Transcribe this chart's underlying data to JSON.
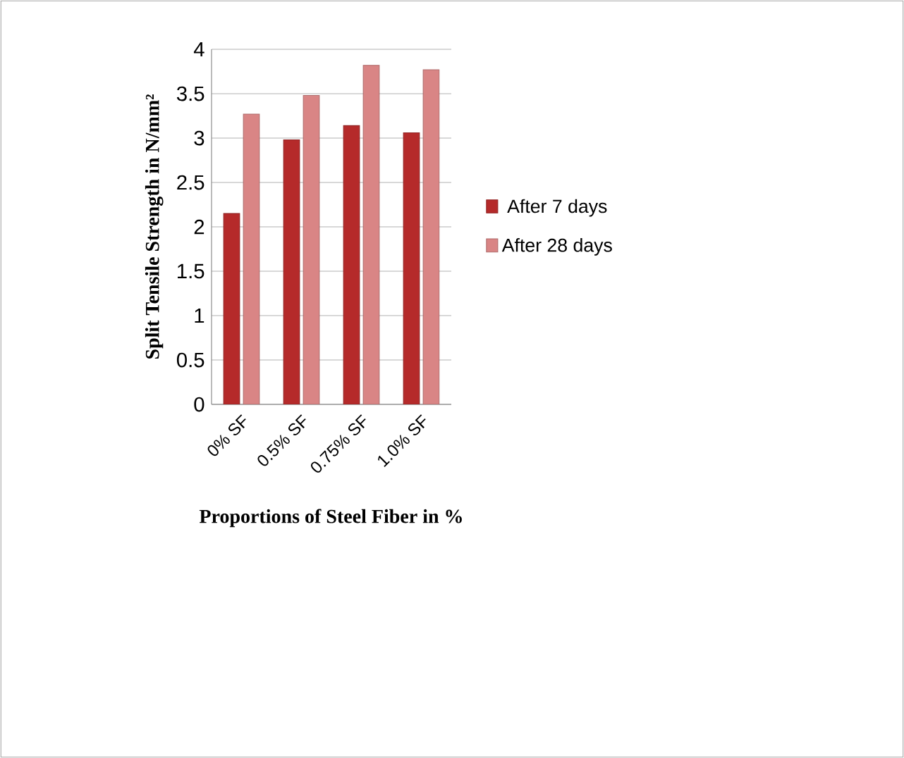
{
  "chart_data": {
    "type": "bar",
    "xlabel": "Proportions of Steel Fiber in %",
    "ylabel": "Split Tensile Strength  in N/mm²",
    "categories": [
      "0% SF",
      "0.5% SF",
      "0.75% SF",
      "1.0% SF"
    ],
    "series": [
      {
        "name": "After 7 days",
        "color": "#b52a2a",
        "values": [
          2.15,
          2.98,
          3.14,
          3.06
        ]
      },
      {
        "name": "After 28 days",
        "color": "#d98585",
        "values": [
          3.27,
          3.48,
          3.82,
          3.77
        ]
      }
    ],
    "ylim": [
      0,
      4
    ],
    "yticks": [
      0,
      0.5,
      1,
      1.5,
      2,
      2.5,
      3,
      3.5,
      4
    ],
    "grid": "y",
    "legend": "right"
  }
}
